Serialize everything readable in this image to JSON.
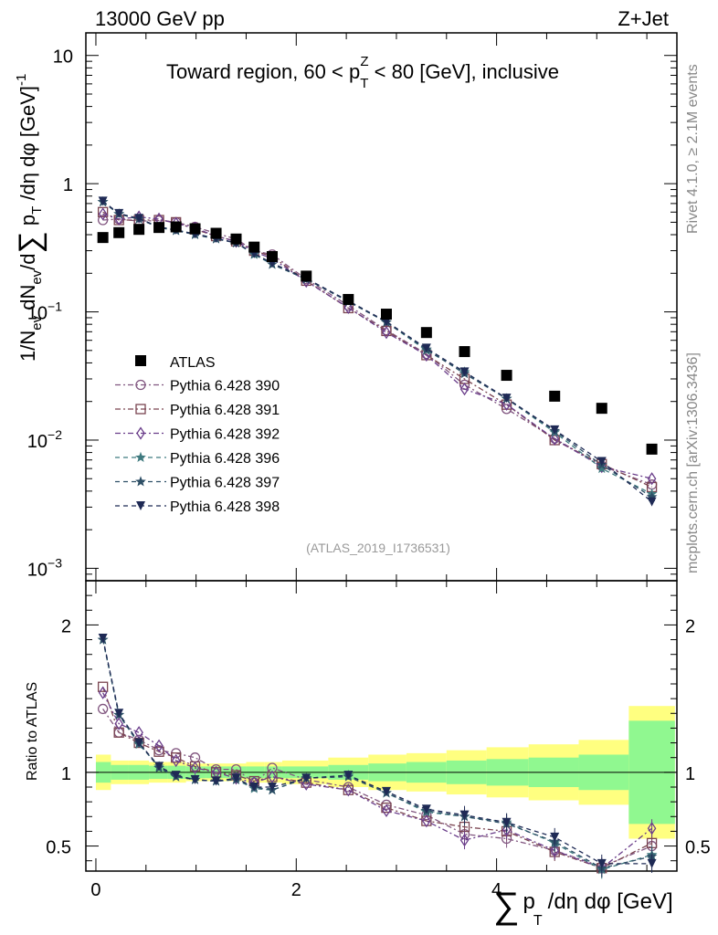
{
  "chart_data": {
    "type": "scatter",
    "header_left": "13000 GeV pp",
    "header_right": "Z+Jet",
    "title": "Toward region, 60 < p_T^Z < 80 [GeV], inclusive",
    "title_parts": {
      "pre": "Toward region, 60 < p",
      "sub": "T",
      "sup": "Z",
      "post": " < 80 [GeV], inclusive"
    },
    "analysis_id": "(ATLAS_2019_I1736531)",
    "side_label_top": "Rivet 4.1.0, ≥ 2.1M events",
    "side_label_bottom": "mcplots.cern.ch [arXiv:1306.3436]",
    "xlabel": "∑ p_T /dη dφ [GeV]",
    "xlabel_parts": {
      "sigma": "∑",
      "p": "p",
      "sub": "T",
      "rest": "/dη dφ [GeV]"
    },
    "ylabel_top": "1/N_ev dN_ev/d∑ p_T /dη dφ [GeV]^-1",
    "ylabel_parts": {
      "a": "1/N",
      "a_sub": "ev",
      "b": " dN",
      "b_sub": "ev",
      "c": "/d",
      "sigma": "∑",
      "p": " p",
      "p_sub": "T",
      "d": " /dη dφ  [GeV]",
      "d_sup": "-1"
    },
    "ylabel_bottom": "Ratio to ATLAS",
    "xlim": [
      -0.1,
      5.8
    ],
    "ylim_top": [
      0.0008,
      15
    ],
    "ylim_bottom": [
      0.33,
      2.3
    ],
    "x_ticks": [
      {
        "v": 0,
        "label": "0"
      },
      {
        "v": 2,
        "label": "2"
      },
      {
        "v": 4,
        "label": "4"
      }
    ],
    "y_ticks_top": [
      {
        "v": 10,
        "base": "10",
        "exp": ""
      },
      {
        "v": 1,
        "base": "1",
        "exp": ""
      },
      {
        "v": 0.1,
        "base": "10",
        "exp": "−1"
      },
      {
        "v": 0.01,
        "base": "10",
        "exp": "−2"
      },
      {
        "v": 0.001,
        "base": "10",
        "exp": "−3"
      }
    ],
    "y_ticks_bottom": [
      {
        "v": 2,
        "label": "2"
      },
      {
        "v": 1,
        "label": "1"
      },
      {
        "v": 0.5,
        "label": "0.5"
      }
    ],
    "x": [
      0.07,
      0.23,
      0.43,
      0.63,
      0.8,
      0.99,
      1.2,
      1.4,
      1.58,
      1.76,
      2.1,
      2.52,
      2.9,
      3.3,
      3.68,
      4.1,
      4.58,
      5.05,
      5.55
    ],
    "data": {
      "name": "ATLAS",
      "values": [
        0.38,
        0.415,
        0.44,
        0.455,
        0.46,
        0.445,
        0.41,
        0.37,
        0.32,
        0.27,
        0.19,
        0.125,
        0.096,
        0.069,
        0.049,
        0.032,
        0.022,
        0.0177,
        0.0085
      ],
      "x_bins": [
        [
          0,
          0.15
        ],
        [
          0.15,
          0.32
        ],
        [
          0.32,
          0.53
        ],
        [
          0.53,
          0.72
        ],
        [
          0.72,
          0.9
        ],
        [
          0.9,
          1.1
        ],
        [
          1.1,
          1.3
        ],
        [
          1.3,
          1.5
        ],
        [
          1.5,
          1.68
        ],
        [
          1.68,
          1.86
        ],
        [
          1.86,
          2.32
        ],
        [
          2.32,
          2.72
        ],
        [
          2.72,
          3.1
        ],
        [
          3.1,
          3.5
        ],
        [
          3.5,
          3.9
        ],
        [
          3.9,
          4.32
        ],
        [
          4.32,
          4.82
        ],
        [
          4.82,
          5.32
        ],
        [
          5.32,
          5.78
        ]
      ],
      "band_inner": [
        0.07,
        0.05,
        0.05,
        0.045,
        0.045,
        0.04,
        0.04,
        0.04,
        0.04,
        0.04,
        0.04,
        0.05,
        0.06,
        0.07,
        0.08,
        0.09,
        0.1,
        0.12,
        0.35
      ],
      "band_outer": [
        0.12,
        0.08,
        0.08,
        0.07,
        0.07,
        0.06,
        0.06,
        0.06,
        0.07,
        0.07,
        0.08,
        0.1,
        0.12,
        0.13,
        0.15,
        0.17,
        0.19,
        0.22,
        0.45
      ]
    },
    "series": [
      {
        "name": "Pythia 6.428 390",
        "color": "#80557f",
        "marker": "circle",
        "dash": "6,3,2,3",
        "values": [
          0.52,
          0.53,
          0.51,
          0.515,
          0.5,
          0.46,
          0.41,
          0.37,
          0.3,
          0.28,
          0.18,
          0.112,
          0.072,
          0.047,
          0.027,
          0.0175,
          0.0103,
          0.0063,
          0.0045
        ]
      },
      {
        "name": "Pythia 6.428 391",
        "color": "#7a4450",
        "marker": "square",
        "dash": "6,3,2,3",
        "values": [
          0.6,
          0.52,
          0.52,
          0.52,
          0.5,
          0.44,
          0.39,
          0.355,
          0.3,
          0.27,
          0.175,
          0.107,
          0.071,
          0.046,
          0.03,
          0.0189,
          0.01,
          0.0065,
          0.0043
        ]
      },
      {
        "name": "Pythia 6.428 392",
        "color": "#6a3d8a",
        "marker": "diamond",
        "dash": "6,3,2,3",
        "values": [
          0.58,
          0.53,
          0.55,
          0.53,
          0.49,
          0.45,
          0.39,
          0.355,
          0.295,
          0.26,
          0.173,
          0.108,
          0.069,
          0.046,
          0.025,
          0.019,
          0.0102,
          0.0062,
          0.005
        ]
      },
      {
        "name": "Pythia 6.428 396",
        "color": "#3f7a7f",
        "marker": "star",
        "dash": "5,4",
        "values": [
          0.72,
          0.58,
          0.53,
          0.46,
          0.435,
          0.405,
          0.375,
          0.345,
          0.28,
          0.235,
          0.18,
          0.121,
          0.083,
          0.05,
          0.034,
          0.021,
          0.0115,
          0.006,
          0.0038
        ]
      },
      {
        "name": "Pythia 6.428 397",
        "color": "#2e4f66",
        "marker": "star",
        "dash": "5,4",
        "values": [
          0.72,
          0.58,
          0.53,
          0.455,
          0.43,
          0.4,
          0.37,
          0.345,
          0.285,
          0.235,
          0.18,
          0.12,
          0.083,
          0.051,
          0.033,
          0.021,
          0.0118,
          0.0064,
          0.0036
        ]
      },
      {
        "name": "Pythia 6.428 398",
        "color": "#1f2a55",
        "marker": "triangle-down",
        "dash": "5,4",
        "values": [
          0.73,
          0.585,
          0.535,
          0.46,
          0.435,
          0.405,
          0.375,
          0.345,
          0.285,
          0.24,
          0.182,
          0.122,
          0.084,
          0.052,
          0.034,
          0.0212,
          0.012,
          0.0068,
          0.0033
        ]
      }
    ],
    "ratio_values": [
      [
        1.43,
        1.27,
        1.22,
        1.15,
        1.13,
        1.1,
        1.02,
        1.02,
        0.93,
        1.03,
        0.95,
        0.9,
        0.78,
        0.71,
        0.58,
        0.55,
        0.47,
        0.36,
        0.5
      ],
      [
        1.58,
        1.27,
        1.2,
        1.14,
        1.1,
        1.04,
        1.0,
        0.98,
        0.94,
        0.97,
        0.93,
        0.88,
        0.76,
        0.67,
        0.63,
        0.6,
        0.46,
        0.35,
        0.52
      ],
      [
        1.54,
        1.33,
        1.27,
        1.18,
        1.08,
        1.03,
        1.0,
        0.96,
        0.93,
        0.97,
        0.92,
        0.88,
        0.74,
        0.67,
        0.54,
        0.61,
        0.47,
        0.35,
        0.62
      ],
      [
        1.9,
        1.39,
        1.19,
        1.04,
        0.97,
        0.95,
        0.94,
        0.95,
        0.89,
        0.88,
        0.96,
        0.98,
        0.86,
        0.73,
        0.7,
        0.66,
        0.52,
        0.34,
        0.44
      ],
      [
        1.9,
        1.39,
        1.2,
        1.03,
        0.97,
        0.95,
        0.94,
        0.95,
        0.9,
        0.88,
        0.96,
        0.97,
        0.86,
        0.74,
        0.7,
        0.65,
        0.53,
        0.35,
        0.43
      ],
      [
        1.91,
        1.4,
        1.2,
        1.04,
        0.98,
        0.95,
        0.94,
        0.96,
        0.9,
        0.9,
        0.96,
        0.98,
        0.87,
        0.75,
        0.71,
        0.66,
        0.56,
        0.38,
        0.38
      ]
    ]
  }
}
